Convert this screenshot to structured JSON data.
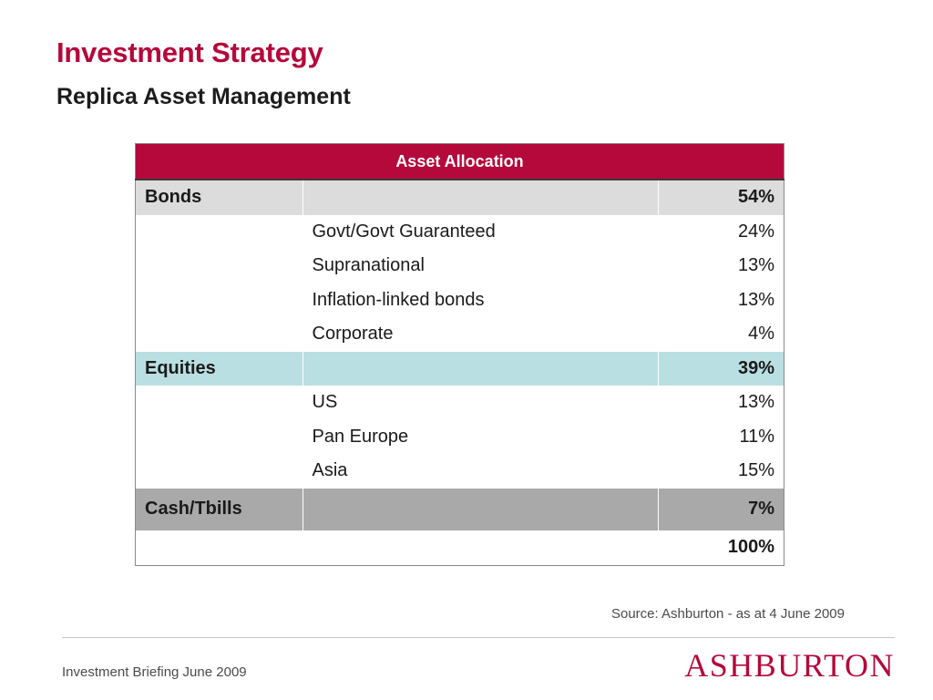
{
  "header": {
    "title": "Investment Strategy",
    "subtitle": "Replica Asset Management"
  },
  "table": {
    "heading": "Asset Allocation",
    "bonds": {
      "label": "Bonds",
      "value": "54%",
      "items": [
        {
          "label": "Govt/Govt Guaranteed",
          "value": "24%"
        },
        {
          "label": "Supranational",
          "value": "13%"
        },
        {
          "label": "Inflation-linked bonds",
          "value": "13%"
        },
        {
          "label": "Corporate",
          "value": "4%"
        }
      ]
    },
    "equities": {
      "label": "Equities",
      "value": "39%",
      "items": [
        {
          "label": "US",
          "value": "13%"
        },
        {
          "label": "Pan Europe",
          "value": "11%"
        },
        {
          "label": "Asia",
          "value": "15%"
        }
      ]
    },
    "cash": {
      "label": "Cash/Tbills",
      "value": "7%"
    },
    "total": "100%"
  },
  "source": "Source: Ashburton - as at 4 June 2009",
  "footer": {
    "text": "Investment Briefing June 2009",
    "logo": "ASHBURTON"
  },
  "colors": {
    "brand": "#b5083b",
    "bonds_row": "#dcdcdc",
    "equities_row": "#b9dfe2",
    "cash_row": "#a9a9a9"
  }
}
